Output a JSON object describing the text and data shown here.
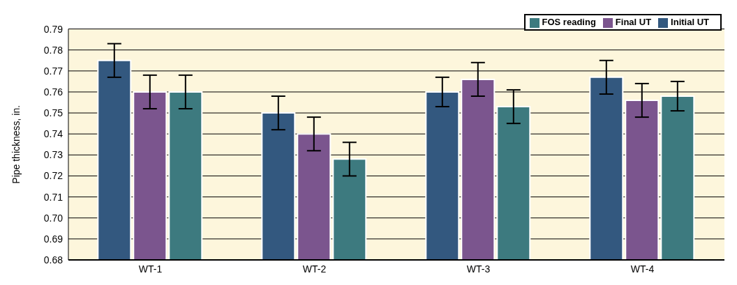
{
  "chart_data": {
    "type": "bar",
    "ylabel": "Pipe thickness, in.",
    "categories": [
      "WT-1",
      "WT-2",
      "WT-3",
      "WT-4"
    ],
    "series": [
      {
        "name": "Initial UT",
        "color": "#33587f",
        "values": [
          0.775,
          0.75,
          0.76,
          0.767
        ],
        "errors": [
          0.008,
          0.008,
          0.007,
          0.008
        ]
      },
      {
        "name": "Final UT",
        "color": "#7b558e",
        "values": [
          0.76,
          0.74,
          0.766,
          0.756
        ],
        "errors": [
          0.008,
          0.008,
          0.008,
          0.008
        ]
      },
      {
        "name": "FOS reading",
        "color": "#3d7a7f",
        "values": [
          0.76,
          0.728,
          0.753,
          0.758
        ],
        "errors": [
          0.008,
          0.008,
          0.008,
          0.007
        ]
      }
    ],
    "ylim": [
      0.68,
      0.79
    ],
    "yticks": [
      0.68,
      0.69,
      {
        "value": 0.7,
        "label": "0.70"
      },
      0.71,
      0.72,
      0.73,
      0.74,
      0.75,
      0.76,
      0.77,
      0.78,
      0.79
    ],
    "grid": "y",
    "legend": "top right"
  }
}
